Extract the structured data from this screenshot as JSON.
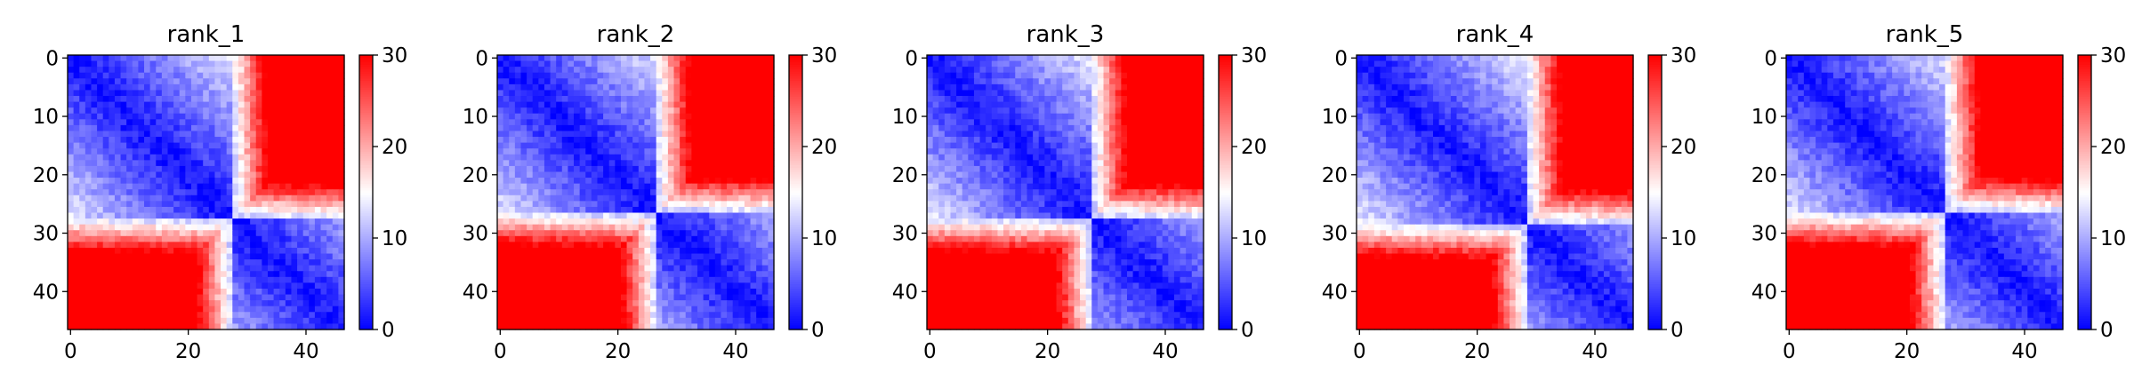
{
  "chart_data": [
    {
      "type": "heatmap",
      "title": "rank_1",
      "n": 47,
      "xticks": [
        0,
        20,
        40
      ],
      "yticks": [
        0,
        10,
        20,
        30,
        40
      ],
      "colorbar": {
        "ticks": [
          0,
          10,
          20,
          30
        ],
        "vmin": 0,
        "vmax": 30,
        "cmap": [
          "#0000ff",
          "#ffffff",
          "#ff0000"
        ]
      },
      "block_boundary": 28
    },
    {
      "type": "heatmap",
      "title": "rank_2",
      "n": 47,
      "xticks": [
        0,
        20,
        40
      ],
      "yticks": [
        0,
        10,
        20,
        30,
        40
      ],
      "colorbar": {
        "ticks": [
          0,
          10,
          20,
          30
        ],
        "vmin": 0,
        "vmax": 30,
        "cmap": [
          "#0000ff",
          "#ffffff",
          "#ff0000"
        ]
      },
      "block_boundary": 27
    },
    {
      "type": "heatmap",
      "title": "rank_3",
      "n": 47,
      "xticks": [
        0,
        20,
        40
      ],
      "yticks": [
        0,
        10,
        20,
        30,
        40
      ],
      "colorbar": {
        "ticks": [
          0,
          10,
          20,
          30
        ],
        "vmin": 0,
        "vmax": 30,
        "cmap": [
          "#0000ff",
          "#ffffff",
          "#ff0000"
        ]
      },
      "block_boundary": 28
    },
    {
      "type": "heatmap",
      "title": "rank_4",
      "n": 47,
      "xticks": [
        0,
        20,
        40
      ],
      "yticks": [
        0,
        10,
        20,
        30,
        40
      ],
      "colorbar": {
        "ticks": [
          0,
          10,
          20,
          30
        ],
        "vmin": 0,
        "vmax": 30,
        "cmap": [
          "#0000ff",
          "#ffffff",
          "#ff0000"
        ]
      },
      "block_boundary": 29
    },
    {
      "type": "heatmap",
      "title": "rank_5",
      "n": 47,
      "xticks": [
        0,
        20,
        40
      ],
      "yticks": [
        0,
        10,
        20,
        30,
        40
      ],
      "colorbar": {
        "ticks": [
          0,
          10,
          20,
          30
        ],
        "vmin": 0,
        "vmax": 30,
        "cmap": [
          "#0000ff",
          "#ffffff",
          "#ff0000"
        ]
      },
      "block_boundary": 27
    }
  ]
}
